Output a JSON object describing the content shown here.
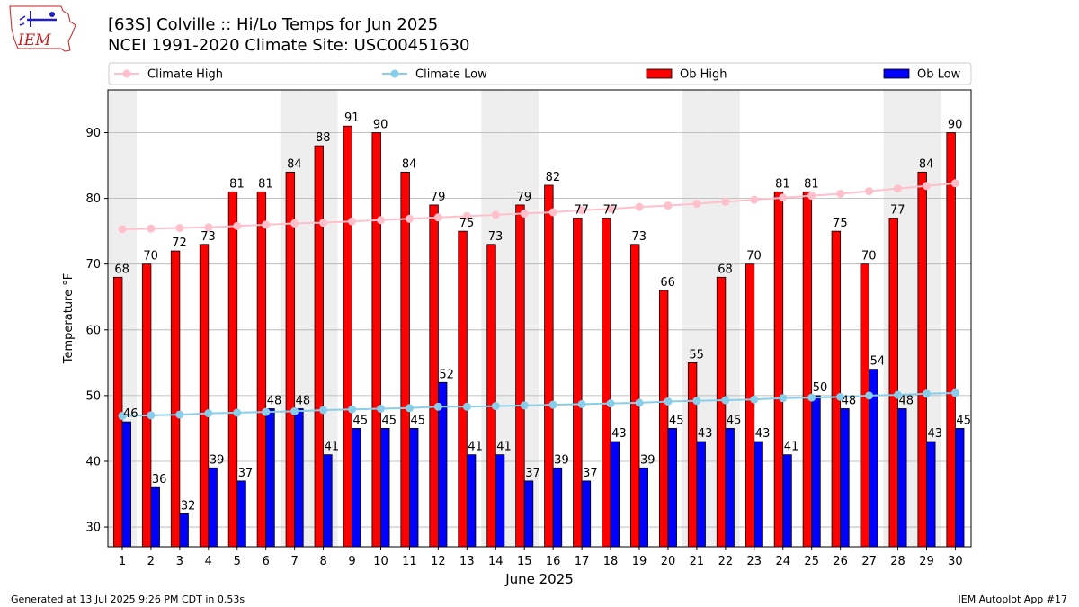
{
  "header": {
    "logo_text": "IEM",
    "title_line1": "[63S] Colville :: Hi/Lo Temps for Jun 2025",
    "title_line2": "NCEI 1991-2020 Climate Site: USC00451630"
  },
  "footer": {
    "generated": "Generated at 13 Jul 2025 9:26 PM CDT in 0.53s",
    "app": "IEM Autoplot App #17"
  },
  "colors": {
    "ob_high": "#ff0000",
    "ob_low": "#0000ff",
    "climate_high": "#ffc0cb",
    "climate_low": "#87ceeb",
    "weekend_shade": "#eeeeee",
    "grid": "#b0b0b0"
  },
  "chart_data": {
    "type": "bar",
    "xlabel": "June 2025",
    "ylabel": "Temperature °F",
    "ylim": [
      27,
      96.5
    ],
    "yticks": [
      30,
      40,
      50,
      60,
      70,
      80,
      90
    ],
    "grid": "horizontal",
    "legend_position": "top",
    "categories": [
      "1",
      "2",
      "3",
      "4",
      "5",
      "6",
      "7",
      "8",
      "9",
      "10",
      "11",
      "12",
      "13",
      "14",
      "15",
      "16",
      "17",
      "18",
      "19",
      "20",
      "21",
      "22",
      "23",
      "24",
      "25",
      "26",
      "27",
      "28",
      "29",
      "30"
    ],
    "shaded_days": [
      1,
      7,
      8,
      14,
      15,
      21,
      22,
      28,
      29
    ],
    "series": [
      {
        "name": "Ob High",
        "kind": "bar",
        "values": [
          68,
          70,
          72,
          73,
          81,
          81,
          84,
          88,
          91,
          90,
          84,
          79,
          75,
          73,
          79,
          82,
          77,
          77,
          73,
          66,
          55,
          68,
          70,
          81,
          81,
          75,
          70,
          77,
          84,
          90
        ]
      },
      {
        "name": "Ob Low",
        "kind": "bar",
        "values": [
          46,
          36,
          32,
          39,
          37,
          48,
          48,
          41,
          45,
          45,
          45,
          52,
          41,
          41,
          37,
          39,
          37,
          43,
          39,
          45,
          43,
          45,
          43,
          41,
          50,
          48,
          54,
          48,
          43,
          45
        ]
      },
      {
        "name": "Climate High",
        "kind": "line",
        "values": [
          75.3,
          75.4,
          75.5,
          75.6,
          75.8,
          76.0,
          76.2,
          76.3,
          76.5,
          76.7,
          76.9,
          77.1,
          77.3,
          77.5,
          77.7,
          77.9,
          78.2,
          78.4,
          78.7,
          78.9,
          79.2,
          79.5,
          79.8,
          80.1,
          80.4,
          80.7,
          81.1,
          81.5,
          81.9,
          82.3
        ]
      },
      {
        "name": "Climate Low",
        "kind": "line",
        "values": [
          46.9,
          47.0,
          47.1,
          47.3,
          47.4,
          47.5,
          47.6,
          47.8,
          47.9,
          48.0,
          48.1,
          48.3,
          48.3,
          48.4,
          48.5,
          48.6,
          48.7,
          48.8,
          48.9,
          49.1,
          49.2,
          49.3,
          49.4,
          49.6,
          49.7,
          49.8,
          50.0,
          50.1,
          50.3,
          50.4
        ]
      }
    ]
  }
}
